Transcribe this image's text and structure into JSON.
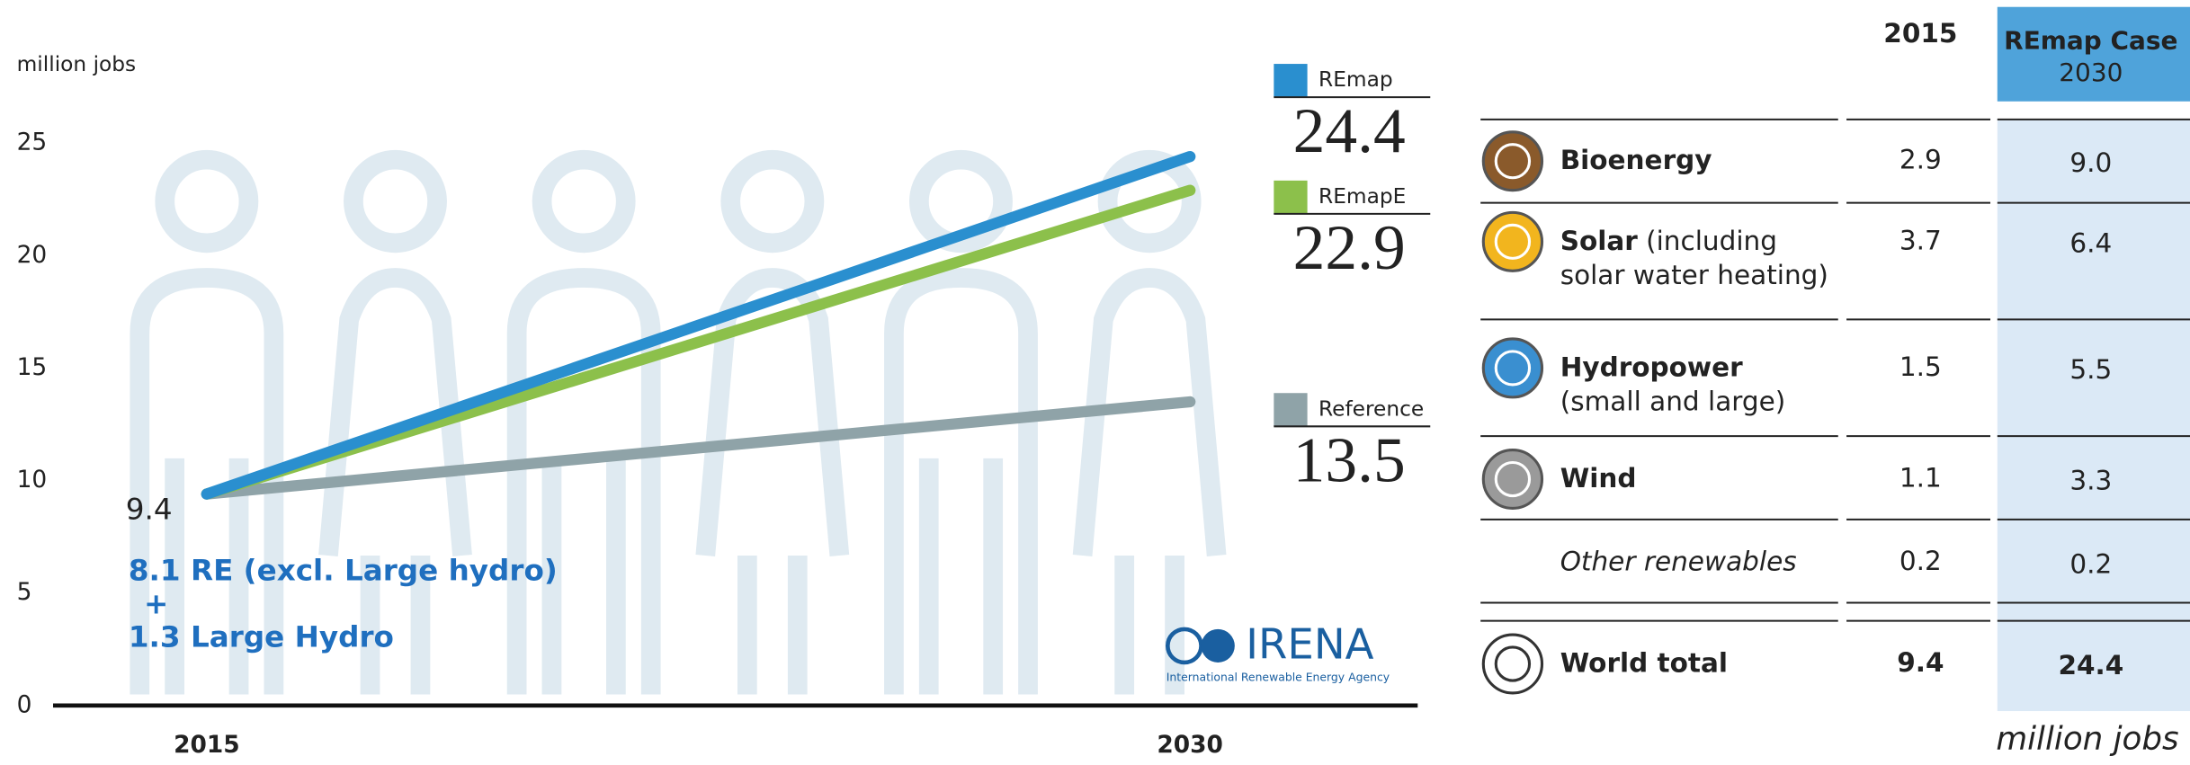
{
  "chart_data": {
    "type": "line",
    "y_label": "million jobs",
    "categories": [
      "2015",
      "2030"
    ],
    "series": [
      {
        "name": "REmap",
        "color": "#2a8fcf",
        "values": [
          9.4,
          24.4
        ]
      },
      {
        "name": "REmapE",
        "color": "#8cc04b",
        "values": [
          9.4,
          22.9
        ]
      },
      {
        "name": "Reference",
        "color": "#8fa3a8",
        "values": [
          9.4,
          13.5
        ]
      }
    ],
    "ylim": [
      0,
      25
    ],
    "yticks": [
      0,
      5,
      10,
      15,
      20,
      25
    ],
    "annotations": [
      "8.1 RE (excl. Large hydro)",
      "+",
      "1.3 Large Hydro"
    ],
    "logo": {
      "name": "IRENA",
      "subtitle": "International Renewable Energy Agency"
    }
  },
  "table": {
    "header": {
      "col1": "2015",
      "col2_title": "REmap Case",
      "col2_sub": "2030"
    },
    "rows": [
      {
        "name": "Bioenergy",
        "note": [],
        "v2015": "2.9",
        "v2030": "9.0"
      },
      {
        "name": "Solar",
        "note": [
          "(including",
          "solar water heating)"
        ],
        "v2015": "3.7",
        "v2030": "6.4"
      },
      {
        "name": "Hydropower",
        "note": [
          "(small and large)"
        ],
        "v2015": "1.5",
        "v2030": "5.5"
      },
      {
        "name": "Wind",
        "note": [],
        "v2015": "1.1",
        "v2030": "3.3"
      },
      {
        "name": "Other renewables",
        "note": [],
        "v2015": "0.2",
        "v2030": "0.2"
      },
      {
        "name": "World total",
        "note": [],
        "v2015": "9.4",
        "v2030": "24.4"
      }
    ],
    "footer": "million jobs"
  }
}
